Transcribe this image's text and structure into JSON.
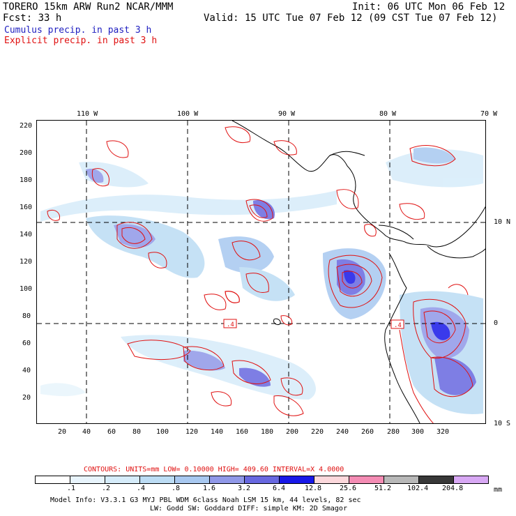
{
  "header": {
    "model": "TORERO  15km ARW   Run2    NCAR/MMM",
    "init": "Init: 06 UTC Mon 06 Feb 12",
    "fcst": "Fcst:   33 h",
    "valid": "Valid: 15 UTC Tue 07 Feb 12 (09 CST Tue 07 Feb 12)",
    "legend_cumulus": "Cumulus precip. in past 3 h",
    "legend_explicit": "Explicit precip. in past 3 h"
  },
  "map": {
    "lon_labels": [
      "110 W",
      "100 W",
      "90 W",
      "80 W",
      "70 W"
    ],
    "lat_labels": [
      "10 N",
      "0",
      "10 S"
    ],
    "y_ticks": [
      "220",
      "200",
      "180",
      "160",
      "140",
      "120",
      "100",
      "80",
      "60",
      "40",
      "20"
    ],
    "x_ticks": [
      "20",
      "40",
      "60",
      "80",
      "100",
      "120",
      "140",
      "160",
      "180",
      "200",
      "220",
      "240",
      "260",
      "280",
      "300",
      "320"
    ],
    "box_labels": [
      ".4",
      ".4"
    ]
  },
  "contours": {
    "label": "CONTOURS:  UNITS=mm  LOW= 0.10000     HIGH=  409.60     INTERVAL=X  4.0000"
  },
  "colorbar": {
    "labels": [
      ".1",
      ".2",
      ".4",
      ".8",
      "1.6",
      "3.2",
      "6.4",
      "12.8",
      "25.6",
      "51.2",
      "102.4",
      "204.8"
    ],
    "unit": "mm",
    "colors": [
      "#ffffff",
      "#e8f4fc",
      "#d6ecfa",
      "#bcdcf4",
      "#a8c8f0",
      "#9098e8",
      "#6868e0",
      "#1818e8",
      "#fcd8dc",
      "#f48cb4",
      "#b8b8b8",
      "#383838",
      "#d8a8f4"
    ]
  },
  "footer": {
    "line1": "Model Info: V3.3.1    G3      MYJ PBL  WDM 6class  Noah LSM  15 km,    44 levels,    82 sec",
    "line2": "LW: Godd SW: Goddard DIFF: simple KM: 2D Smagor"
  }
}
